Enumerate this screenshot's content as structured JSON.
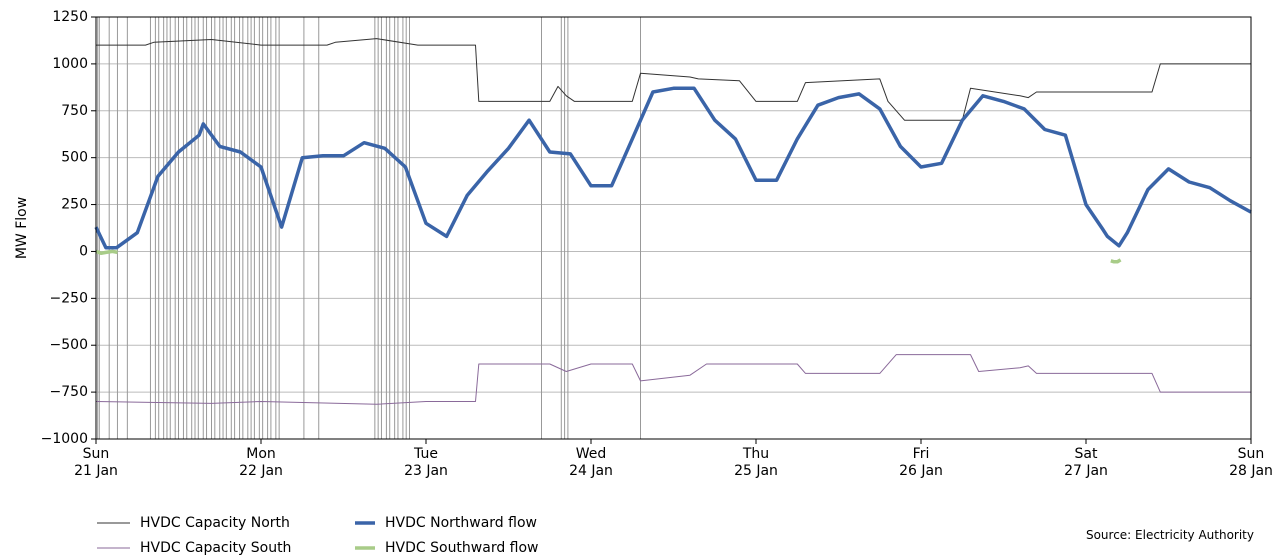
{
  "chart_data": {
    "type": "line",
    "ylabel": "MW Flow",
    "source": "Source: Electricity Authority",
    "xlim": [
      0,
      7
    ],
    "xticks": [
      {
        "value": 0,
        "label": "Sun\n21 Jan"
      },
      {
        "value": 1,
        "label": "Mon\n22 Jan"
      },
      {
        "value": 2,
        "label": "Tue\n23 Jan"
      },
      {
        "value": 3,
        "label": "Wed\n24 Jan"
      },
      {
        "value": 4,
        "label": "Thu\n25 Jan"
      },
      {
        "value": 5,
        "label": "Fri\n26 Jan"
      },
      {
        "value": 6,
        "label": "Sat\n27 Jan"
      },
      {
        "value": 7,
        "label": "Sun\n28 Jan"
      }
    ],
    "ylim": [
      -1000,
      1250
    ],
    "yticks": [
      {
        "value": -1000,
        "label": "−1000"
      },
      {
        "value": -750,
        "label": "−750"
      },
      {
        "value": -500,
        "label": "−500"
      },
      {
        "value": -250,
        "label": "−250"
      },
      0,
      250,
      500,
      750,
      1000,
      1250
    ],
    "grid": true,
    "vlines_color": "#999999",
    "vlines": [
      0.01,
      0.02,
      0.08,
      0.13,
      0.19,
      0.33,
      0.36,
      0.38,
      0.41,
      0.43,
      0.45,
      0.48,
      0.5,
      0.53,
      0.55,
      0.58,
      0.6,
      0.62,
      0.65,
      0.67,
      0.7,
      0.72,
      0.75,
      0.77,
      0.79,
      0.82,
      0.84,
      0.87,
      0.89,
      0.92,
      0.94,
      0.96,
      0.99,
      1.01,
      1.04,
      1.06,
      1.09,
      1.11,
      1.26,
      1.35,
      1.69,
      1.71,
      1.73,
      1.76,
      1.78,
      1.81,
      1.83,
      1.86,
      1.88,
      1.9,
      2.7,
      2.82,
      2.84,
      2.86,
      3.3
    ],
    "series": [
      {
        "name": "HVDC Capacity North",
        "color": "#333333",
        "width": 1,
        "x": [
          0,
          0.3,
          0.35,
          0.7,
          1.0,
          1.4,
          1.45,
          1.7,
          1.95,
          2.3,
          2.32,
          2.75,
          2.8,
          2.85,
          2.9,
          3.0,
          3.25,
          3.3,
          3.6,
          3.65,
          3.9,
          4.0,
          4.25,
          4.3,
          4.75,
          4.8,
          4.9,
          5.25,
          5.3,
          5.6,
          5.65,
          5.7,
          6.4,
          6.45,
          7
        ],
        "values": [
          1100,
          1100,
          1115,
          1130,
          1100,
          1100,
          1115,
          1135,
          1100,
          1100,
          800,
          800,
          880,
          830,
          800,
          800,
          800,
          950,
          930,
          920,
          910,
          800,
          800,
          900,
          920,
          800,
          700,
          700,
          870,
          830,
          820,
          850,
          850,
          1000,
          1000
        ]
      },
      {
        "name": "HVDC Capacity South",
        "color": "#8a6a9a",
        "width": 1,
        "x": [
          0,
          0.7,
          1.0,
          1.7,
          2.0,
          2.3,
          2.32,
          2.75,
          2.85,
          3.0,
          3.25,
          3.3,
          3.5,
          3.6,
          3.7,
          4.25,
          4.3,
          4.75,
          4.85,
          5.3,
          5.35,
          5.6,
          5.65,
          5.7,
          6.4,
          6.45,
          7
        ],
        "values": [
          -800,
          -810,
          -800,
          -815,
          -800,
          -800,
          -600,
          -600,
          -640,
          -600,
          -600,
          -690,
          -670,
          -660,
          -600,
          -600,
          -650,
          -650,
          -550,
          -550,
          -640,
          -620,
          -610,
          -650,
          -650,
          -750,
          -750
        ]
      },
      {
        "name": "HVDC Northward flow",
        "color": "#3a64a8",
        "width": 3.5,
        "x": [
          0,
          0.06,
          0.125,
          0.25,
          0.375,
          0.5,
          0.625,
          0.65,
          0.75,
          0.875,
          1.0,
          1.125,
          1.25,
          1.375,
          1.5,
          1.625,
          1.75,
          1.875,
          2.0,
          2.125,
          2.25,
          2.375,
          2.5,
          2.625,
          2.75,
          2.875,
          3.0,
          3.125,
          3.25,
          3.375,
          3.5,
          3.625,
          3.75,
          3.875,
          4.0,
          4.125,
          4.25,
          4.375,
          4.5,
          4.625,
          4.75,
          4.875,
          5.0,
          5.125,
          5.25,
          5.375,
          5.5,
          5.625,
          5.75,
          5.875,
          6.0,
          6.1,
          6.13,
          6.2,
          6.25,
          6.375,
          6.5,
          6.625,
          6.75,
          6.875,
          7.0
        ],
        "values": [
          130,
          20,
          20,
          100,
          400,
          530,
          620,
          680,
          560,
          530,
          450,
          130,
          500,
          510,
          510,
          580,
          550,
          450,
          150,
          80,
          300,
          430,
          550,
          700,
          530,
          520,
          350,
          350,
          600,
          850,
          870,
          870,
          700,
          600,
          380,
          380,
          600,
          780,
          820,
          840,
          760,
          560,
          450,
          470,
          700,
          830,
          800,
          760,
          650,
          620,
          250,
          120,
          80,
          30,
          100,
          330,
          440,
          370,
          340,
          270,
          210
        ]
      },
      {
        "name": "HVDC Southward flow",
        "color": "#a8cc88",
        "width": 3.5,
        "x": [
          0,
          0.03,
          0.06,
          0.1,
          0.13,
          0.15,
          6.15,
          6.17,
          6.19,
          6.21
        ],
        "values": [
          0,
          -10,
          -5,
          0,
          -5,
          null,
          -50,
          -55,
          -55,
          -45
        ]
      }
    ]
  }
}
